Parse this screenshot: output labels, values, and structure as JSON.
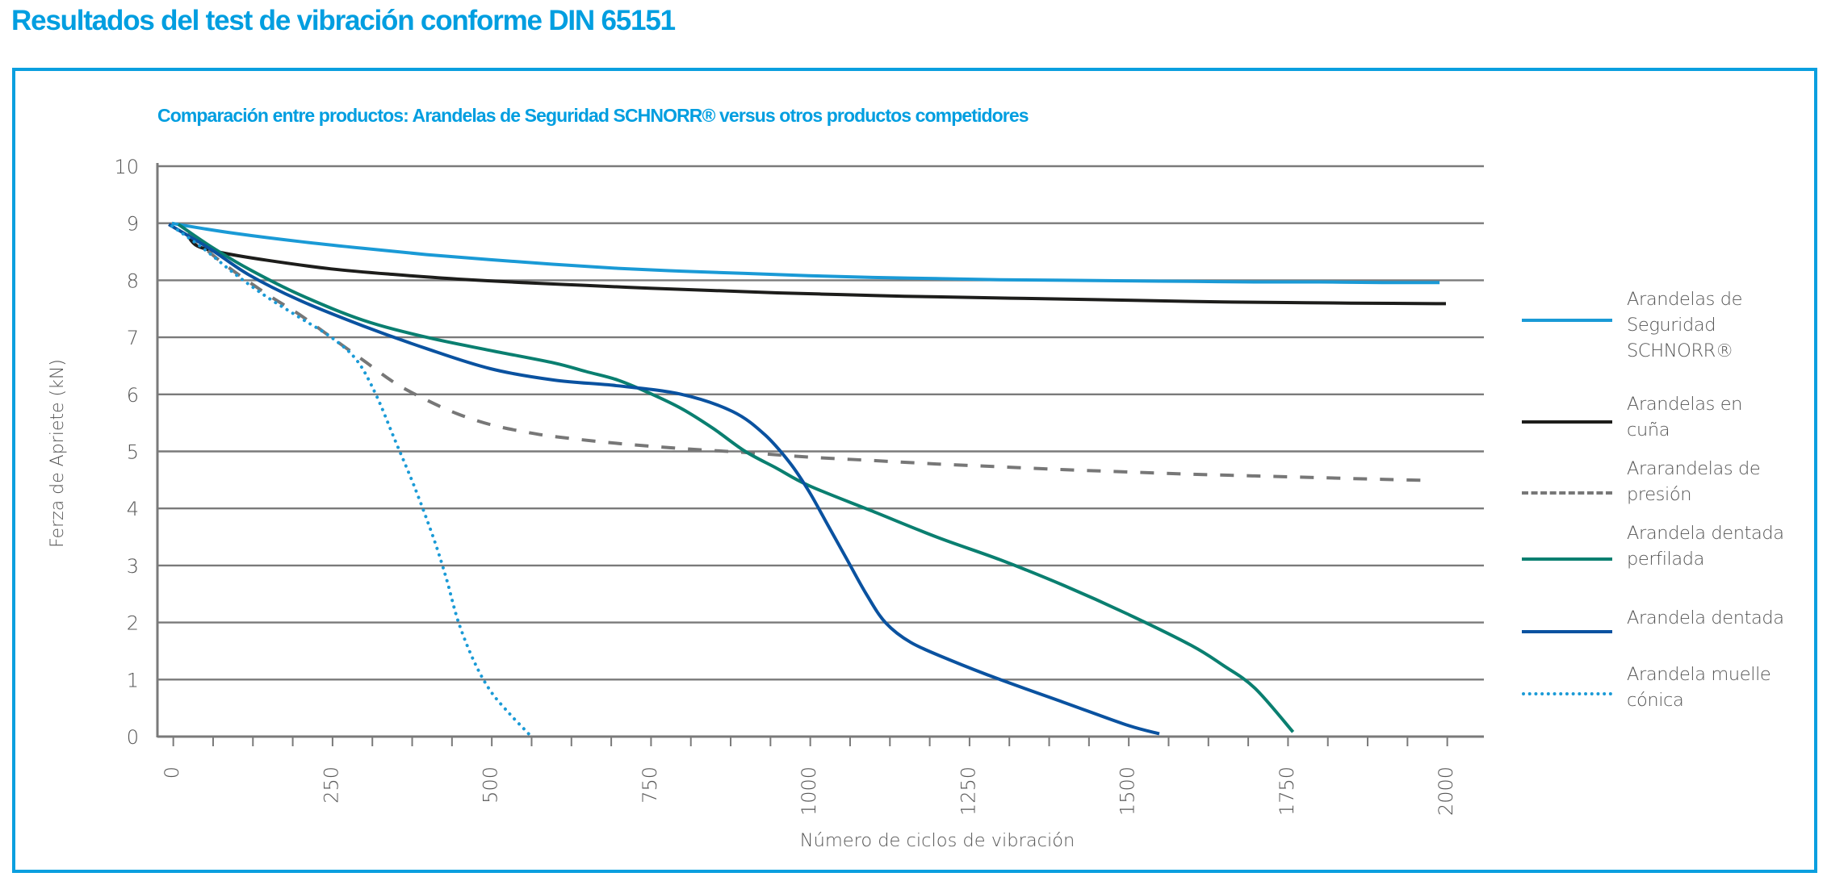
{
  "page": {
    "title": "Resultados del test de vibración conforme DIN 65151",
    "accent_color": "#009ee0"
  },
  "chart_data": {
    "type": "line",
    "title": "Comparación entre productos: Arandelas de Seguridad SCHNORR® versus otros productos competidores",
    "xlabel": "Número de ciclos de vibración",
    "ylabel": "Ferza de Apriete (kN)",
    "xlim": [
      0,
      2050
    ],
    "ylim": [
      0,
      10
    ],
    "x_ticks": [
      0,
      250,
      500,
      750,
      1000,
      1250,
      1500,
      1750,
      2000
    ],
    "x_tick_labels": [
      "0",
      "250",
      "500",
      "750",
      "1000",
      "1250",
      "1500",
      "1750",
      "2000"
    ],
    "x_minor_step": 62.5,
    "y_ticks": [
      0,
      1,
      2,
      3,
      4,
      5,
      6,
      7,
      8,
      9,
      10
    ],
    "y_tick_labels": [
      "0",
      "1",
      "2",
      "3",
      "4",
      "5",
      "6",
      "7",
      "8",
      "9",
      "10"
    ],
    "grid": "horizontal",
    "legend_position": "right",
    "series": [
      {
        "name": "Arandelas de Seguridad SCHNORR®",
        "legend_label": "Arandelas de\nSeguridad\nSCHNORR®",
        "color": "#1a9ad6",
        "style": "solid",
        "points": [
          [
            0,
            9.0
          ],
          [
            25,
            8.95
          ],
          [
            100,
            8.82
          ],
          [
            200,
            8.68
          ],
          [
            300,
            8.56
          ],
          [
            400,
            8.45
          ],
          [
            500,
            8.36
          ],
          [
            600,
            8.28
          ],
          [
            700,
            8.21
          ],
          [
            800,
            8.16
          ],
          [
            900,
            8.12
          ],
          [
            1000,
            8.08
          ],
          [
            1100,
            8.05
          ],
          [
            1200,
            8.03
          ],
          [
            1300,
            8.01
          ],
          [
            1400,
            8.0
          ],
          [
            1500,
            7.99
          ],
          [
            1600,
            7.98
          ],
          [
            1700,
            7.97
          ],
          [
            1800,
            7.97
          ],
          [
            1900,
            7.96
          ],
          [
            1990,
            7.96
          ]
        ]
      },
      {
        "name": "Arandelas en cuña",
        "legend_label": "Arandelas en\ncuña",
        "color": "#1d1d1b",
        "style": "solid",
        "points": [
          [
            25,
            8.78
          ],
          [
            40,
            8.6
          ],
          [
            80,
            8.48
          ],
          [
            150,
            8.35
          ],
          [
            250,
            8.2
          ],
          [
            350,
            8.1
          ],
          [
            450,
            8.02
          ],
          [
            550,
            7.96
          ],
          [
            650,
            7.91
          ],
          [
            750,
            7.86
          ],
          [
            850,
            7.82
          ],
          [
            950,
            7.78
          ],
          [
            1050,
            7.75
          ],
          [
            1150,
            7.72
          ],
          [
            1250,
            7.7
          ],
          [
            1350,
            7.68
          ],
          [
            1450,
            7.66
          ],
          [
            1550,
            7.64
          ],
          [
            1650,
            7.62
          ],
          [
            1750,
            7.61
          ],
          [
            1850,
            7.6
          ],
          [
            2000,
            7.59
          ]
        ]
      },
      {
        "name": "Ararandelas de presión",
        "legend_label": "Ararandelas de\npresión",
        "color": "#777777",
        "style": "dashed",
        "points": [
          [
            25,
            8.82
          ],
          [
            80,
            8.3
          ],
          [
            150,
            7.75
          ],
          [
            200,
            7.4
          ],
          [
            250,
            7.0
          ],
          [
            300,
            6.6
          ],
          [
            350,
            6.2
          ],
          [
            400,
            5.9
          ],
          [
            450,
            5.65
          ],
          [
            500,
            5.47
          ],
          [
            550,
            5.35
          ],
          [
            600,
            5.26
          ],
          [
            700,
            5.14
          ],
          [
            800,
            5.05
          ],
          [
            900,
            4.98
          ],
          [
            1000,
            4.9
          ],
          [
            1100,
            4.84
          ],
          [
            1200,
            4.78
          ],
          [
            1300,
            4.73
          ],
          [
            1400,
            4.68
          ],
          [
            1500,
            4.64
          ],
          [
            1600,
            4.6
          ],
          [
            1700,
            4.57
          ],
          [
            1800,
            4.54
          ],
          [
            1900,
            4.51
          ],
          [
            1980,
            4.49
          ]
        ]
      },
      {
        "name": "Arandela dentada perfilada",
        "legend_label": "Arandela dentada\nperfilada",
        "color": "#0a7f70",
        "style": "solid",
        "points": [
          [
            10,
            8.98
          ],
          [
            60,
            8.6
          ],
          [
            120,
            8.2
          ],
          [
            200,
            7.75
          ],
          [
            300,
            7.3
          ],
          [
            400,
            7.0
          ],
          [
            500,
            6.77
          ],
          [
            600,
            6.55
          ],
          [
            650,
            6.4
          ],
          [
            700,
            6.25
          ],
          [
            750,
            6.02
          ],
          [
            800,
            5.75
          ],
          [
            850,
            5.4
          ],
          [
            900,
            5.0
          ],
          [
            950,
            4.7
          ],
          [
            1000,
            4.4
          ],
          [
            1100,
            3.95
          ],
          [
            1200,
            3.5
          ],
          [
            1300,
            3.1
          ],
          [
            1400,
            2.65
          ],
          [
            1500,
            2.15
          ],
          [
            1600,
            1.6
          ],
          [
            1650,
            1.25
          ],
          [
            1700,
            0.85
          ],
          [
            1760,
            0.08
          ]
        ]
      },
      {
        "name": "Arandela dentada",
        "legend_label": "Arandela dentada",
        "color": "#0a52a0",
        "style": "solid",
        "points": [
          [
            -5,
            8.98
          ],
          [
            60,
            8.55
          ],
          [
            120,
            8.1
          ],
          [
            200,
            7.65
          ],
          [
            300,
            7.2
          ],
          [
            400,
            6.8
          ],
          [
            500,
            6.45
          ],
          [
            600,
            6.25
          ],
          [
            700,
            6.15
          ],
          [
            800,
            6.0
          ],
          [
            880,
            5.7
          ],
          [
            930,
            5.3
          ],
          [
            970,
            4.8
          ],
          [
            1000,
            4.3
          ],
          [
            1030,
            3.7
          ],
          [
            1060,
            3.1
          ],
          [
            1090,
            2.5
          ],
          [
            1120,
            2.0
          ],
          [
            1160,
            1.65
          ],
          [
            1220,
            1.35
          ],
          [
            1300,
            1.0
          ],
          [
            1400,
            0.6
          ],
          [
            1500,
            0.2
          ],
          [
            1550,
            0.05
          ]
        ]
      },
      {
        "name": "Arandela muelle cónica",
        "legend_label": "Arandela muelle\ncónica",
        "color": "#1a9ad6",
        "style": "dotted",
        "points": [
          [
            0,
            8.95
          ],
          [
            50,
            8.55
          ],
          [
            100,
            8.1
          ],
          [
            150,
            7.7
          ],
          [
            200,
            7.35
          ],
          [
            250,
            7.0
          ],
          [
            290,
            6.6
          ],
          [
            320,
            6.0
          ],
          [
            350,
            5.2
          ],
          [
            380,
            4.4
          ],
          [
            410,
            3.5
          ],
          [
            430,
            2.8
          ],
          [
            450,
            2.0
          ],
          [
            475,
            1.3
          ],
          [
            500,
            0.8
          ],
          [
            530,
            0.4
          ],
          [
            560,
            0.05
          ]
        ]
      }
    ]
  }
}
